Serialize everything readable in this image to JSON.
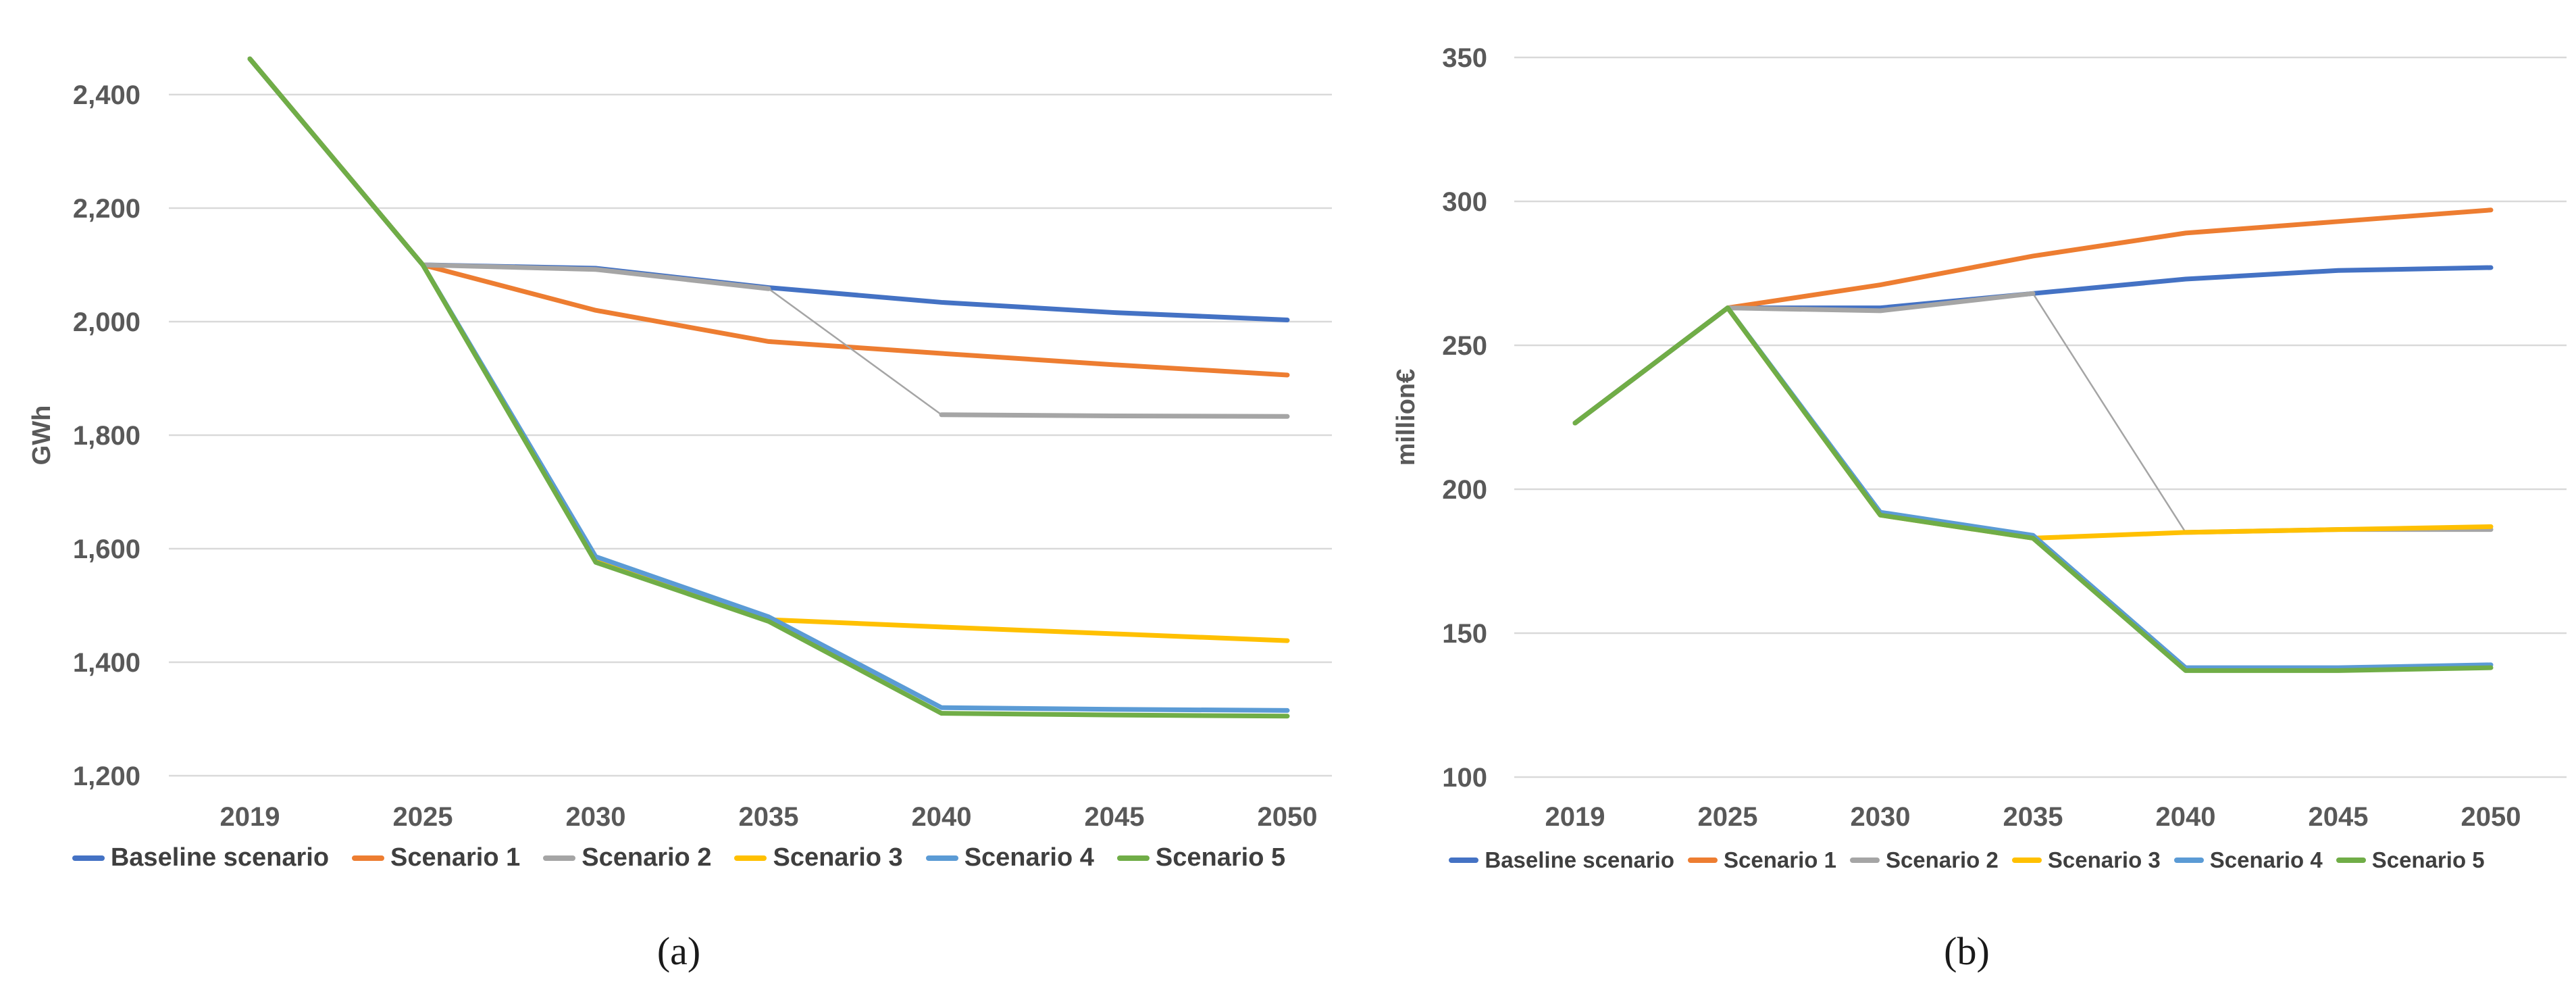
{
  "figure": {
    "captions": {
      "a": "(a)",
      "b": "(b)"
    }
  },
  "colors": {
    "baseline": "#4472C4",
    "scenario1": "#ED7D31",
    "scenario2": "#A5A5A5",
    "scenario3": "#FFC000",
    "scenario4": "#5B9BD5",
    "scenario5": "#70AD47",
    "gridline": "#D9D9D9",
    "tick_text": "#595959"
  },
  "chart_data": [
    {
      "id": "a",
      "type": "line",
      "title": "",
      "xlabel": "",
      "ylabel": "GWh",
      "categories": [
        "2019",
        "2025",
        "2030",
        "2035",
        "2040",
        "2045",
        "2050"
      ],
      "ylim": [
        1200,
        2500
      ],
      "yticks": [
        1200,
        1400,
        1600,
        1800,
        2000,
        2200,
        2400
      ],
      "grid": true,
      "legend_position": "bottom",
      "series": [
        {
          "name": "Baseline scenario",
          "color": "#4472C4",
          "values": [
            2463,
            2100,
            2094,
            2060,
            2034,
            2016,
            2003
          ]
        },
        {
          "name": "Scenario 1",
          "color": "#ED7D31",
          "values": [
            2463,
            2100,
            2020,
            1965,
            1944,
            1924,
            1906
          ]
        },
        {
          "name": "Scenario 2",
          "color": "#A5A5A5",
          "values": [
            2463,
            2100,
            2092,
            2058,
            1836,
            1834,
            1833
          ],
          "thin_segment": [
            3,
            4
          ]
        },
        {
          "name": "Scenario 3",
          "color": "#FFC000",
          "values": [
            2463,
            2100,
            1581,
            1475,
            1462,
            1450,
            1438
          ]
        },
        {
          "name": "Scenario 4",
          "color": "#5B9BD5",
          "values": [
            2463,
            2100,
            1586,
            1480,
            1320,
            1317,
            1315
          ]
        },
        {
          "name": "Scenario 5",
          "color": "#70AD47",
          "values": [
            2463,
            2100,
            1576,
            1472,
            1310,
            1307,
            1305
          ]
        }
      ]
    },
    {
      "id": "b",
      "type": "line",
      "title": "",
      "xlabel": "",
      "ylabel": "million€",
      "categories": [
        "2019",
        "2025",
        "2030",
        "2035",
        "2040",
        "2045",
        "2050"
      ],
      "ylim": [
        100,
        360
      ],
      "yticks": [
        100,
        150,
        200,
        250,
        300,
        350
      ],
      "grid": true,
      "legend_position": "bottom",
      "series": [
        {
          "name": "Baseline scenario",
          "color": "#4472C4",
          "values": [
            223,
            263,
            263,
            268,
            273,
            276,
            277
          ]
        },
        {
          "name": "Scenario 1",
          "color": "#ED7D31",
          "values": [
            223,
            263,
            271,
            281,
            289,
            293,
            297
          ]
        },
        {
          "name": "Scenario 2",
          "color": "#A5A5A5",
          "values": [
            223,
            263,
            262,
            268,
            185,
            186,
            186
          ],
          "thin_segment": [
            3,
            4
          ]
        },
        {
          "name": "Scenario 3",
          "color": "#FFC000",
          "values": [
            223,
            263,
            191,
            183,
            185,
            186,
            187
          ]
        },
        {
          "name": "Scenario 4",
          "color": "#5B9BD5",
          "values": [
            223,
            263,
            192,
            184,
            138,
            138,
            139
          ]
        },
        {
          "name": "Scenario 5",
          "color": "#70AD47",
          "values": [
            223,
            263,
            191,
            183,
            137,
            137,
            138
          ]
        }
      ]
    }
  ]
}
